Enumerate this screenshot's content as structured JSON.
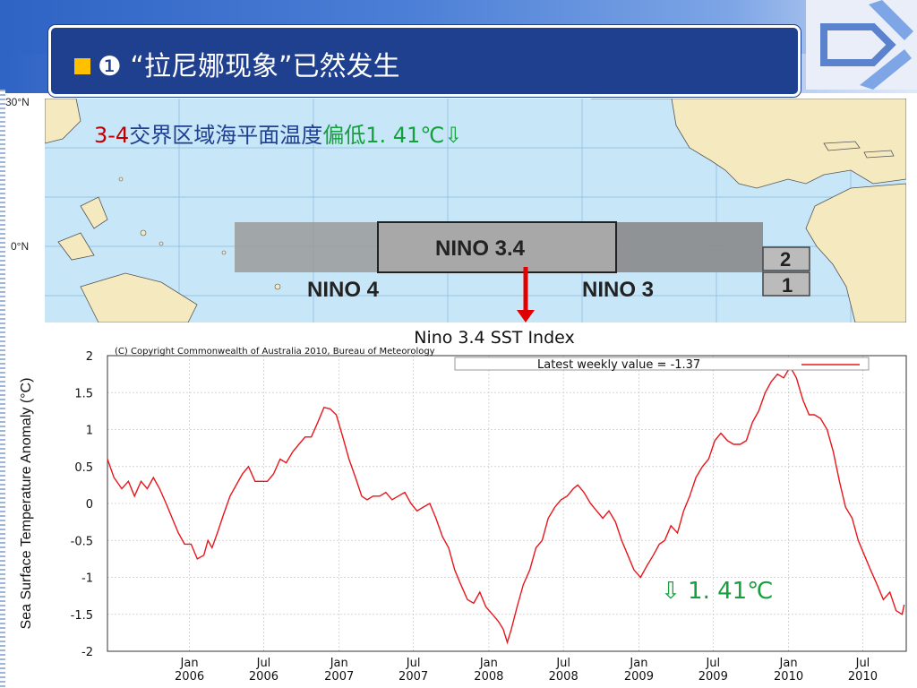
{
  "slide": {
    "title_marker": "■",
    "title": "❶ “拉尼娜现象”已然发生",
    "colors": {
      "title_bg": "#1f3f8f",
      "accent_marker": "#ffc000",
      "annotation_red": "#c00000",
      "annotation_green": "#14a03c"
    }
  },
  "map": {
    "lat_labels": [
      "30°N",
      "0°N"
    ],
    "regions": {
      "nino34": "NINO 3.4",
      "nino4": "NINO 4",
      "nino3": "NINO 3",
      "nino12_top": "2",
      "nino12_bottom": "1"
    },
    "annotation": {
      "prefix": "3-4",
      "middle": "交界区域海平面温度",
      "suffix": "偏低",
      "value": "1. 41℃⇩"
    }
  },
  "chart_data": {
    "type": "line",
    "title": "Nino 3.4 SST Index",
    "copyright": "(C) Copyright Commonwealth of Australia 2010, Bureau of Meteorology",
    "ylabel": "Sea Surface Temperature Anomaly (°C)",
    "ylim": [
      -2,
      2
    ],
    "yticks": [
      2,
      1.5,
      1,
      0.5,
      0,
      -0.5,
      -1,
      -1.5,
      -2
    ],
    "ytick_labels": [
      "2",
      "1.5",
      "1",
      "0.5",
      "0",
      "-0.5",
      "-1",
      "-1.5",
      "-2"
    ],
    "xlim": [
      "2005-06-15",
      "2010-10-15"
    ],
    "xticks": [
      {
        "date": "2006-01-01",
        "label": [
          "Jan",
          "2006"
        ]
      },
      {
        "date": "2006-07-01",
        "label": [
          "Jul",
          "2006"
        ]
      },
      {
        "date": "2007-01-01",
        "label": [
          "Jan",
          "2007"
        ]
      },
      {
        "date": "2007-07-01",
        "label": [
          "Jul",
          "2007"
        ]
      },
      {
        "date": "2008-01-01",
        "label": [
          "Jan",
          "2008"
        ]
      },
      {
        "date": "2008-07-01",
        "label": [
          "Jul",
          "2008"
        ]
      },
      {
        "date": "2009-01-01",
        "label": [
          "Jan",
          "2009"
        ]
      },
      {
        "date": "2009-07-01",
        "label": [
          "Jul",
          "2009"
        ]
      },
      {
        "date": "2010-01-01",
        "label": [
          "Jan",
          "2010"
        ]
      },
      {
        "date": "2010-07-01",
        "label": [
          "Jul",
          "2010"
        ]
      }
    ],
    "grid": true,
    "legend": {
      "position": "top-right",
      "label": "Latest weekly value = -1.37"
    },
    "annotation": "⇩ 1. 41℃",
    "series": [
      {
        "name": "Latest weekly value = -1.37",
        "color": "#e8161b",
        "points": [
          [
            "2005-06-15",
            0.6
          ],
          [
            "2005-07-01",
            0.35
          ],
          [
            "2005-07-20",
            0.2
          ],
          [
            "2005-08-05",
            0.3
          ],
          [
            "2005-08-20",
            0.1
          ],
          [
            "2005-09-05",
            0.3
          ],
          [
            "2005-09-20",
            0.2
          ],
          [
            "2005-10-05",
            0.35
          ],
          [
            "2005-10-20",
            0.2
          ],
          [
            "2005-11-05",
            0.0
          ],
          [
            "2005-11-20",
            -0.2
          ],
          [
            "2005-12-05",
            -0.4
          ],
          [
            "2005-12-20",
            -0.55
          ],
          [
            "2006-01-05",
            -0.55
          ],
          [
            "2006-01-20",
            -0.75
          ],
          [
            "2006-02-05",
            -0.7
          ],
          [
            "2006-02-15",
            -0.5
          ],
          [
            "2006-02-25",
            -0.6
          ],
          [
            "2006-03-10",
            -0.4
          ],
          [
            "2006-03-25",
            -0.15
          ],
          [
            "2006-04-10",
            0.1
          ],
          [
            "2006-04-25",
            0.25
          ],
          [
            "2006-05-10",
            0.4
          ],
          [
            "2006-05-25",
            0.5
          ],
          [
            "2006-06-10",
            0.3
          ],
          [
            "2006-06-25",
            0.3
          ],
          [
            "2006-07-10",
            0.3
          ],
          [
            "2006-07-25",
            0.4
          ],
          [
            "2006-08-10",
            0.6
          ],
          [
            "2006-08-25",
            0.55
          ],
          [
            "2006-09-10",
            0.7
          ],
          [
            "2006-09-25",
            0.8
          ],
          [
            "2006-10-10",
            0.9
          ],
          [
            "2006-10-25",
            0.9
          ],
          [
            "2006-11-10",
            1.1
          ],
          [
            "2006-11-25",
            1.3
          ],
          [
            "2006-12-10",
            1.28
          ],
          [
            "2006-12-25",
            1.2
          ],
          [
            "2007-01-10",
            0.9
          ],
          [
            "2007-01-25",
            0.6
          ],
          [
            "2007-02-10",
            0.35
          ],
          [
            "2007-02-25",
            0.1
          ],
          [
            "2007-03-10",
            0.05
          ],
          [
            "2007-03-25",
            0.1
          ],
          [
            "2007-04-10",
            0.1
          ],
          [
            "2007-04-25",
            0.15
          ],
          [
            "2007-05-10",
            0.05
          ],
          [
            "2007-05-25",
            0.1
          ],
          [
            "2007-06-10",
            0.15
          ],
          [
            "2007-06-25",
            0.0
          ],
          [
            "2007-07-10",
            -0.1
          ],
          [
            "2007-07-25",
            -0.05
          ],
          [
            "2007-08-10",
            0.0
          ],
          [
            "2007-08-25",
            -0.2
          ],
          [
            "2007-09-10",
            -0.45
          ],
          [
            "2007-09-25",
            -0.6
          ],
          [
            "2007-10-10",
            -0.9
          ],
          [
            "2007-10-25",
            -1.1
          ],
          [
            "2007-11-10",
            -1.3
          ],
          [
            "2007-11-25",
            -1.35
          ],
          [
            "2007-12-10",
            -1.2
          ],
          [
            "2007-12-25",
            -1.4
          ],
          [
            "2008-01-10",
            -1.5
          ],
          [
            "2008-01-25",
            -1.6
          ],
          [
            "2008-02-05",
            -1.7
          ],
          [
            "2008-02-15",
            -1.88
          ],
          [
            "2008-02-25",
            -1.7
          ],
          [
            "2008-03-10",
            -1.4
          ],
          [
            "2008-03-25",
            -1.1
          ],
          [
            "2008-04-10",
            -0.9
          ],
          [
            "2008-04-25",
            -0.6
          ],
          [
            "2008-05-10",
            -0.5
          ],
          [
            "2008-05-25",
            -0.2
          ],
          [
            "2008-06-10",
            -0.05
          ],
          [
            "2008-06-25",
            0.05
          ],
          [
            "2008-07-10",
            0.1
          ],
          [
            "2008-07-25",
            0.2
          ],
          [
            "2008-08-05",
            0.25
          ],
          [
            "2008-08-20",
            0.15
          ],
          [
            "2008-09-05",
            0.0
          ],
          [
            "2008-09-20",
            -0.1
          ],
          [
            "2008-10-05",
            -0.2
          ],
          [
            "2008-10-20",
            -0.1
          ],
          [
            "2008-11-05",
            -0.25
          ],
          [
            "2008-11-20",
            -0.5
          ],
          [
            "2008-12-05",
            -0.7
          ],
          [
            "2008-12-20",
            -0.9
          ],
          [
            "2009-01-05",
            -1.0
          ],
          [
            "2009-01-20",
            -0.85
          ],
          [
            "2009-02-05",
            -0.7
          ],
          [
            "2009-02-20",
            -0.55
          ],
          [
            "2009-03-05",
            -0.5
          ],
          [
            "2009-03-20",
            -0.3
          ],
          [
            "2009-04-05",
            -0.4
          ],
          [
            "2009-04-20",
            -0.1
          ],
          [
            "2009-05-05",
            0.1
          ],
          [
            "2009-05-20",
            0.35
          ],
          [
            "2009-06-05",
            0.5
          ],
          [
            "2009-06-20",
            0.6
          ],
          [
            "2009-07-05",
            0.85
          ],
          [
            "2009-07-20",
            0.95
          ],
          [
            "2009-08-05",
            0.85
          ],
          [
            "2009-08-20",
            0.8
          ],
          [
            "2009-09-05",
            0.8
          ],
          [
            "2009-09-20",
            0.85
          ],
          [
            "2009-10-05",
            1.1
          ],
          [
            "2009-10-20",
            1.25
          ],
          [
            "2009-11-05",
            1.5
          ],
          [
            "2009-11-20",
            1.65
          ],
          [
            "2009-12-05",
            1.75
          ],
          [
            "2009-12-20",
            1.7
          ],
          [
            "2010-01-05",
            1.85
          ],
          [
            "2010-01-20",
            1.7
          ],
          [
            "2010-02-05",
            1.4
          ],
          [
            "2010-02-20",
            1.2
          ],
          [
            "2010-03-05",
            1.2
          ],
          [
            "2010-03-20",
            1.15
          ],
          [
            "2010-04-05",
            1.0
          ],
          [
            "2010-04-20",
            0.7
          ],
          [
            "2010-05-05",
            0.3
          ],
          [
            "2010-05-20",
            -0.05
          ],
          [
            "2010-06-05",
            -0.2
          ],
          [
            "2010-06-20",
            -0.5
          ],
          [
            "2010-07-05",
            -0.7
          ],
          [
            "2010-07-20",
            -0.9
          ],
          [
            "2010-08-05",
            -1.1
          ],
          [
            "2010-08-20",
            -1.3
          ],
          [
            "2010-09-05",
            -1.2
          ],
          [
            "2010-09-20",
            -1.45
          ],
          [
            "2010-10-05",
            -1.5
          ],
          [
            "2010-10-10",
            -1.37
          ]
        ]
      }
    ]
  }
}
